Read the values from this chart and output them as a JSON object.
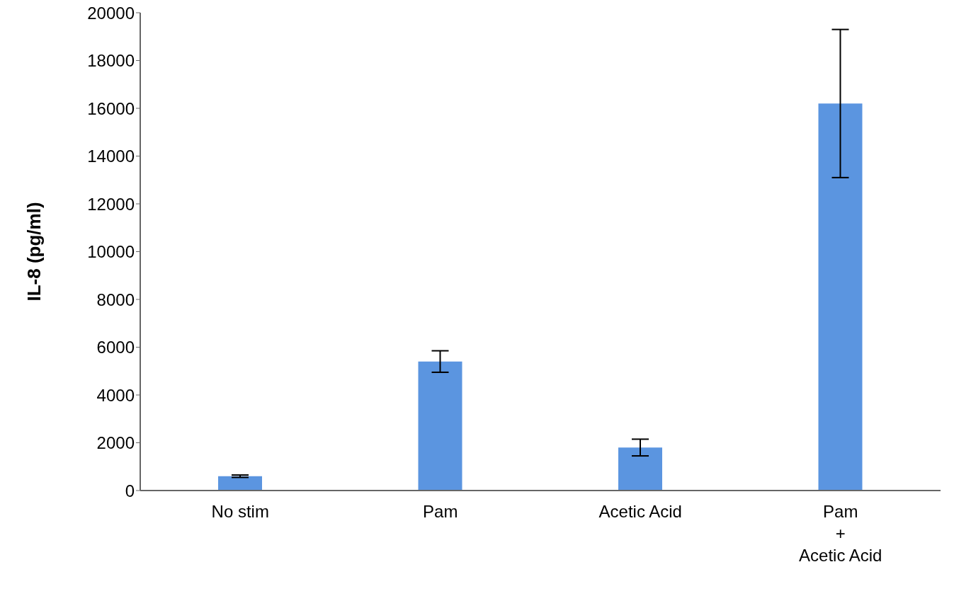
{
  "chart_data": {
    "type": "bar",
    "ylabel": "IL-8 (pg/ml)",
    "categories": [
      "No stim",
      "Pam",
      "Acetic Acid",
      "Pam\n+\nAcetic Acid"
    ],
    "values": [
      600,
      5400,
      1800,
      16200
    ],
    "errors": [
      50,
      450,
      350,
      3100
    ],
    "color": "#5b95e0",
    "ylim": [
      0,
      20000
    ],
    "yticks": [
      0,
      2000,
      4000,
      6000,
      8000,
      10000,
      12000,
      14000,
      16000,
      18000,
      20000
    ],
    "grid": false,
    "legend": false
  }
}
